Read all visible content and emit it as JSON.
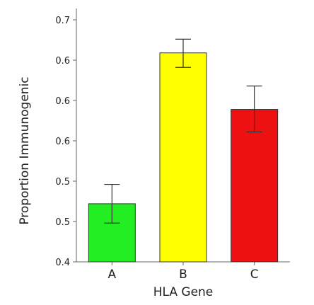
{
  "chart_data": {
    "type": "bar",
    "xlabel": "HLA Gene",
    "ylabel": "Proportion Immunogenic",
    "categories": [
      "A",
      "B",
      "C"
    ],
    "values": [
      0.472,
      0.659,
      0.589
    ],
    "error_low": [
      0.448,
      0.641,
      0.561
    ],
    "error_high": [
      0.496,
      0.676,
      0.618
    ],
    "colors": [
      "#22ee22",
      "#ffff00",
      "#ee1111"
    ],
    "ylim": [
      0.4,
      0.7
    ],
    "yticks": [
      0.4,
      0.45,
      0.5,
      0.55,
      0.6,
      0.65,
      0.7
    ],
    "ytick_labels": [
      "0.4",
      "0.5",
      "0.5",
      "0.6",
      "0.6",
      "0.6",
      "0.7"
    ],
    "grid": false,
    "legend": "none"
  }
}
